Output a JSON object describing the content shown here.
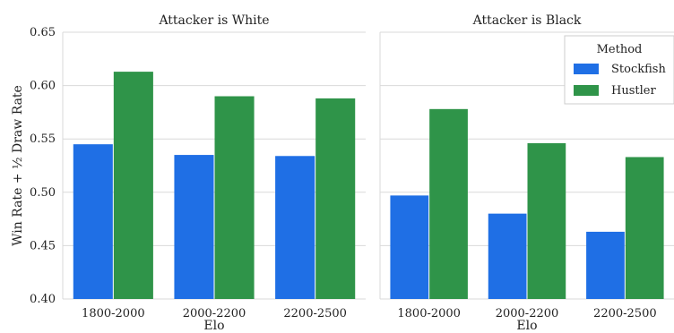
{
  "chart_data": [
    {
      "type": "bar",
      "title": "Attacker is White",
      "categories": [
        "1800-2000",
        "2000-2200",
        "2200-2500"
      ],
      "series": [
        {
          "name": "Stockfish",
          "values": [
            0.545,
            0.535,
            0.534
          ]
        },
        {
          "name": "Hustler",
          "values": [
            0.613,
            0.59,
            0.588
          ]
        }
      ],
      "xlabel": "Elo",
      "ylabel": "Win Rate + ½ Draw Rate",
      "ylim": [
        0.4,
        0.65
      ],
      "yticks": [
        "0.40",
        "0.45",
        "0.50",
        "0.55",
        "0.60",
        "0.65"
      ],
      "grid": true
    },
    {
      "type": "bar",
      "title": "Attacker is Black",
      "categories": [
        "1800-2000",
        "2000-2200",
        "2200-2500"
      ],
      "series": [
        {
          "name": "Stockfish",
          "values": [
            0.497,
            0.48,
            0.463
          ]
        },
        {
          "name": "Hustler",
          "values": [
            0.578,
            0.546,
            0.533
          ]
        }
      ],
      "xlabel": "Elo",
      "ylim": [
        0.4,
        0.65
      ],
      "grid": true
    }
  ],
  "legend": {
    "title": "Method",
    "placement": "top-right",
    "entries": [
      "Stockfish",
      "Hustler"
    ]
  },
  "colors": {
    "Stockfish": "#1f6fe5",
    "Hustler": "#2f9449"
  }
}
